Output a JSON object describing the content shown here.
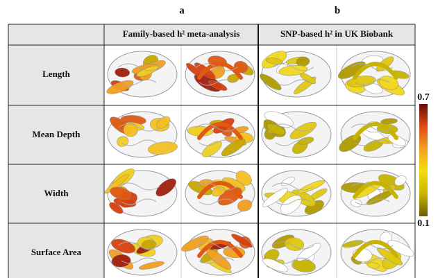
{
  "panel_labels": [
    "a",
    "b"
  ],
  "header": {
    "columns": [
      "Family-based h² meta-analysis",
      "SNP-based h² in UK Biobank"
    ]
  },
  "rows": [
    "Length",
    "Mean Depth",
    "Width",
    "Surface Area"
  ],
  "colorbar": {
    "max": "0.7",
    "min": "0.1"
  }
}
